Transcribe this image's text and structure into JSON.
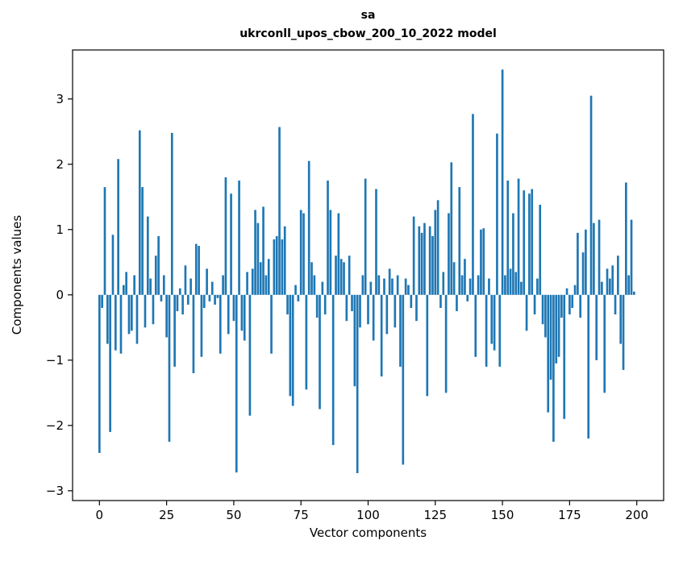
{
  "figure": {
    "title_line1": "sa",
    "title_line2": "ukrconll_upos_cbow_200_10_2022 model"
  },
  "chart_data": {
    "type": "bar",
    "title": "sa\nukrconll_upos_cbow_200_10_2022 model",
    "xlabel": "Vector components",
    "ylabel": "Components values",
    "bar_color": "#1f77b4",
    "axis_color": "#000000",
    "xlim": [
      -10,
      210
    ],
    "ylim": [
      -3.15,
      3.75
    ],
    "xticks": [
      0,
      25,
      50,
      75,
      100,
      125,
      150,
      175,
      200
    ],
    "yticks": [
      -3,
      -2,
      -1,
      0,
      1,
      2,
      3
    ],
    "x_start": 0,
    "bar_width": 0.8,
    "values": [
      -2.42,
      -0.2,
      1.65,
      -0.75,
      -2.1,
      0.92,
      -0.85,
      2.08,
      -0.9,
      0.15,
      0.35,
      -0.6,
      -0.55,
      0.3,
      -0.75,
      2.52,
      1.65,
      -0.5,
      1.2,
      0.25,
      -0.45,
      0.6,
      0.9,
      -0.1,
      0.3,
      -0.65,
      -2.25,
      2.48,
      -1.1,
      -0.25,
      0.1,
      -0.3,
      0.45,
      -0.15,
      0.25,
      -1.2,
      0.78,
      0.75,
      -0.95,
      -0.2,
      0.4,
      -0.1,
      0.2,
      -0.15,
      -0.05,
      -0.9,
      0.3,
      1.8,
      -0.6,
      1.55,
      -0.4,
      -2.72,
      1.75,
      -0.55,
      -0.7,
      0.35,
      -1.85,
      0.4,
      1.3,
      1.1,
      0.5,
      1.35,
      0.3,
      0.55,
      -0.9,
      0.85,
      0.9,
      2.57,
      0.85,
      1.05,
      -0.3,
      -1.55,
      -1.7,
      0.15,
      -0.1,
      1.3,
      1.25,
      -1.45,
      2.05,
      0.5,
      0.3,
      -0.35,
      -1.75,
      0.2,
      -0.3,
      1.75,
      1.3,
      -2.3,
      0.6,
      1.25,
      0.55,
      0.5,
      -0.4,
      0.6,
      -0.25,
      -1.4,
      -2.73,
      -0.5,
      0.3,
      1.78,
      -0.45,
      0.2,
      -0.7,
      1.62,
      0.3,
      -1.25,
      0.25,
      -0.6,
      0.4,
      0.25,
      -0.5,
      0.3,
      -1.1,
      -2.6,
      0.25,
      0.15,
      -0.2,
      1.2,
      -0.4,
      1.05,
      0.95,
      1.1,
      -1.55,
      1.05,
      0.9,
      1.3,
      1.45,
      -0.2,
      0.35,
      -1.5,
      1.25,
      2.03,
      0.5,
      -0.25,
      1.65,
      0.3,
      0.55,
      -0.1,
      0.25,
      2.77,
      -0.95,
      0.3,
      1.0,
      1.02,
      -1.1,
      0.25,
      -0.75,
      -0.85,
      2.47,
      -1.1,
      3.45,
      0.3,
      1.75,
      0.4,
      1.25,
      0.35,
      1.78,
      0.2,
      1.6,
      -0.55,
      1.55,
      1.62,
      -0.3,
      0.25,
      1.38,
      -0.45,
      -0.65,
      -1.8,
      -1.3,
      -2.25,
      -1.05,
      -0.95,
      -0.35,
      -1.9,
      0.1,
      -0.3,
      -0.2,
      0.15,
      0.95,
      -0.35,
      0.65,
      1.0,
      -2.2,
      3.05,
      1.1,
      -1.0,
      1.15,
      0.2,
      -1.5,
      0.4,
      0.25,
      0.45,
      -0.3,
      0.6,
      -0.75,
      -1.15,
      1.72,
      0.3,
      1.15,
      0.05
    ]
  }
}
